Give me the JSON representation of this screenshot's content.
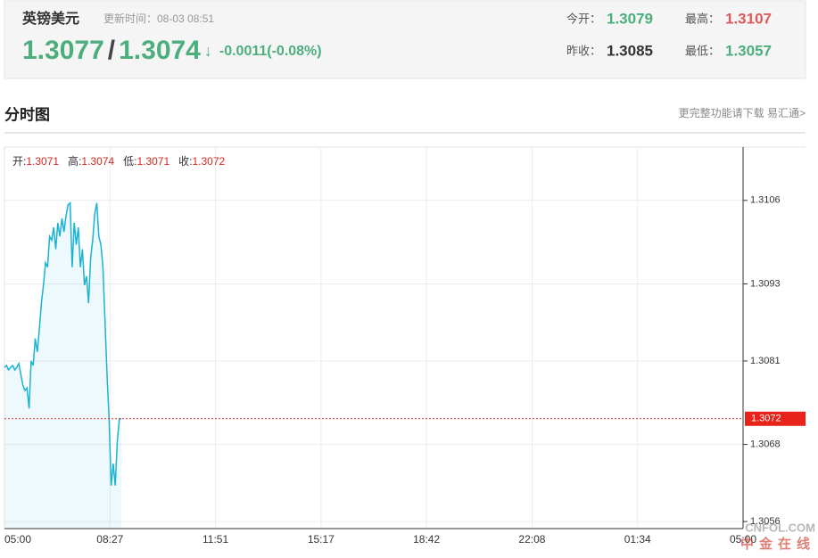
{
  "header": {
    "title": "英镑美元",
    "update_time": "更新时间：08-03 08:51",
    "bid": 1.3077,
    "separator": "/",
    "ask": 1.3074,
    "arrow": "↓",
    "change": "-0.0011(-0.08%)",
    "stats": [
      {
        "label": "今开：",
        "value": 1.3079
      },
      {
        "label": "最高：",
        "value": 1.3107
      },
      {
        "label": "昨收：",
        "value": 1.3085
      },
      {
        "label": "最低：",
        "value": 1.3057
      }
    ]
  },
  "section": {
    "title": "分时图",
    "link": "更完整功能请下载 易汇通>"
  },
  "chart_data": {
    "type": "line",
    "info": [
      {
        "label": "开:",
        "value": 1.3071
      },
      {
        "label": "高:",
        "value": 1.3074
      },
      {
        "label": "低:",
        "value": 1.3071
      },
      {
        "label": "收:",
        "value": 1.3072
      }
    ],
    "x": [
      "05:00",
      "05:04",
      "05:08",
      "05:12",
      "05:16",
      "05:20",
      "05:24",
      "05:28",
      "05:32",
      "05:36",
      "05:40",
      "05:44",
      "05:48",
      "05:52",
      "05:56",
      "06:00",
      "06:04",
      "06:08",
      "06:12",
      "06:16",
      "06:20",
      "06:24",
      "06:28",
      "06:32",
      "06:36",
      "06:40",
      "06:44",
      "06:48",
      "06:52",
      "06:56",
      "07:00",
      "07:04",
      "07:08",
      "07:12",
      "07:16",
      "07:20",
      "07:24",
      "07:28",
      "07:32",
      "07:36",
      "07:40",
      "07:44",
      "07:48",
      "07:52",
      "07:56",
      "08:00",
      "08:04",
      "08:08",
      "08:12",
      "08:16",
      "08:20",
      "08:24",
      "08:28",
      "08:32",
      "08:36",
      "08:40",
      "08:44",
      "08:48"
    ],
    "series": [
      {
        "name": "GBPUSD",
        "color": "#1ab3d4",
        "values": [
          1.308,
          1.30803,
          1.30796,
          1.308,
          1.30803,
          1.30796,
          1.308,
          1.30806,
          1.30789,
          1.30772,
          1.30764,
          1.30768,
          1.30736,
          1.3081,
          1.30803,
          1.30845,
          1.30824,
          1.30859,
          1.309,
          1.30928,
          1.30963,
          1.30956,
          1.31004,
          1.30998,
          1.31018,
          1.30984,
          1.31025,
          1.31004,
          1.31032,
          1.31011,
          1.31036,
          1.31053,
          1.31056,
          1.30956,
          1.31025,
          1.30991,
          1.31018,
          1.30956,
          1.30984,
          1.30928,
          1.30942,
          1.309,
          1.3097,
          1.30998,
          1.31039,
          1.31056,
          1.31004,
          1.30991,
          1.30956,
          1.30873,
          1.30789,
          1.3072,
          1.30616,
          1.3065,
          1.30616,
          1.30685,
          1.3072,
          1.3072
        ]
      }
    ],
    "xticks": [
      "05:00",
      "08:27",
      "11:51",
      "15:17",
      "18:42",
      "22:08",
      "01:34",
      "05:00"
    ],
    "ylim": [
      1.30549,
      1.31143
    ],
    "yticks": [
      1.3106,
      1.3093,
      1.3081,
      1.3068,
      1.3056
    ],
    "current": 1.3072,
    "grid": true
  },
  "watermark": {
    "brand": "CNFOL.COM",
    "name": "中金在线"
  }
}
